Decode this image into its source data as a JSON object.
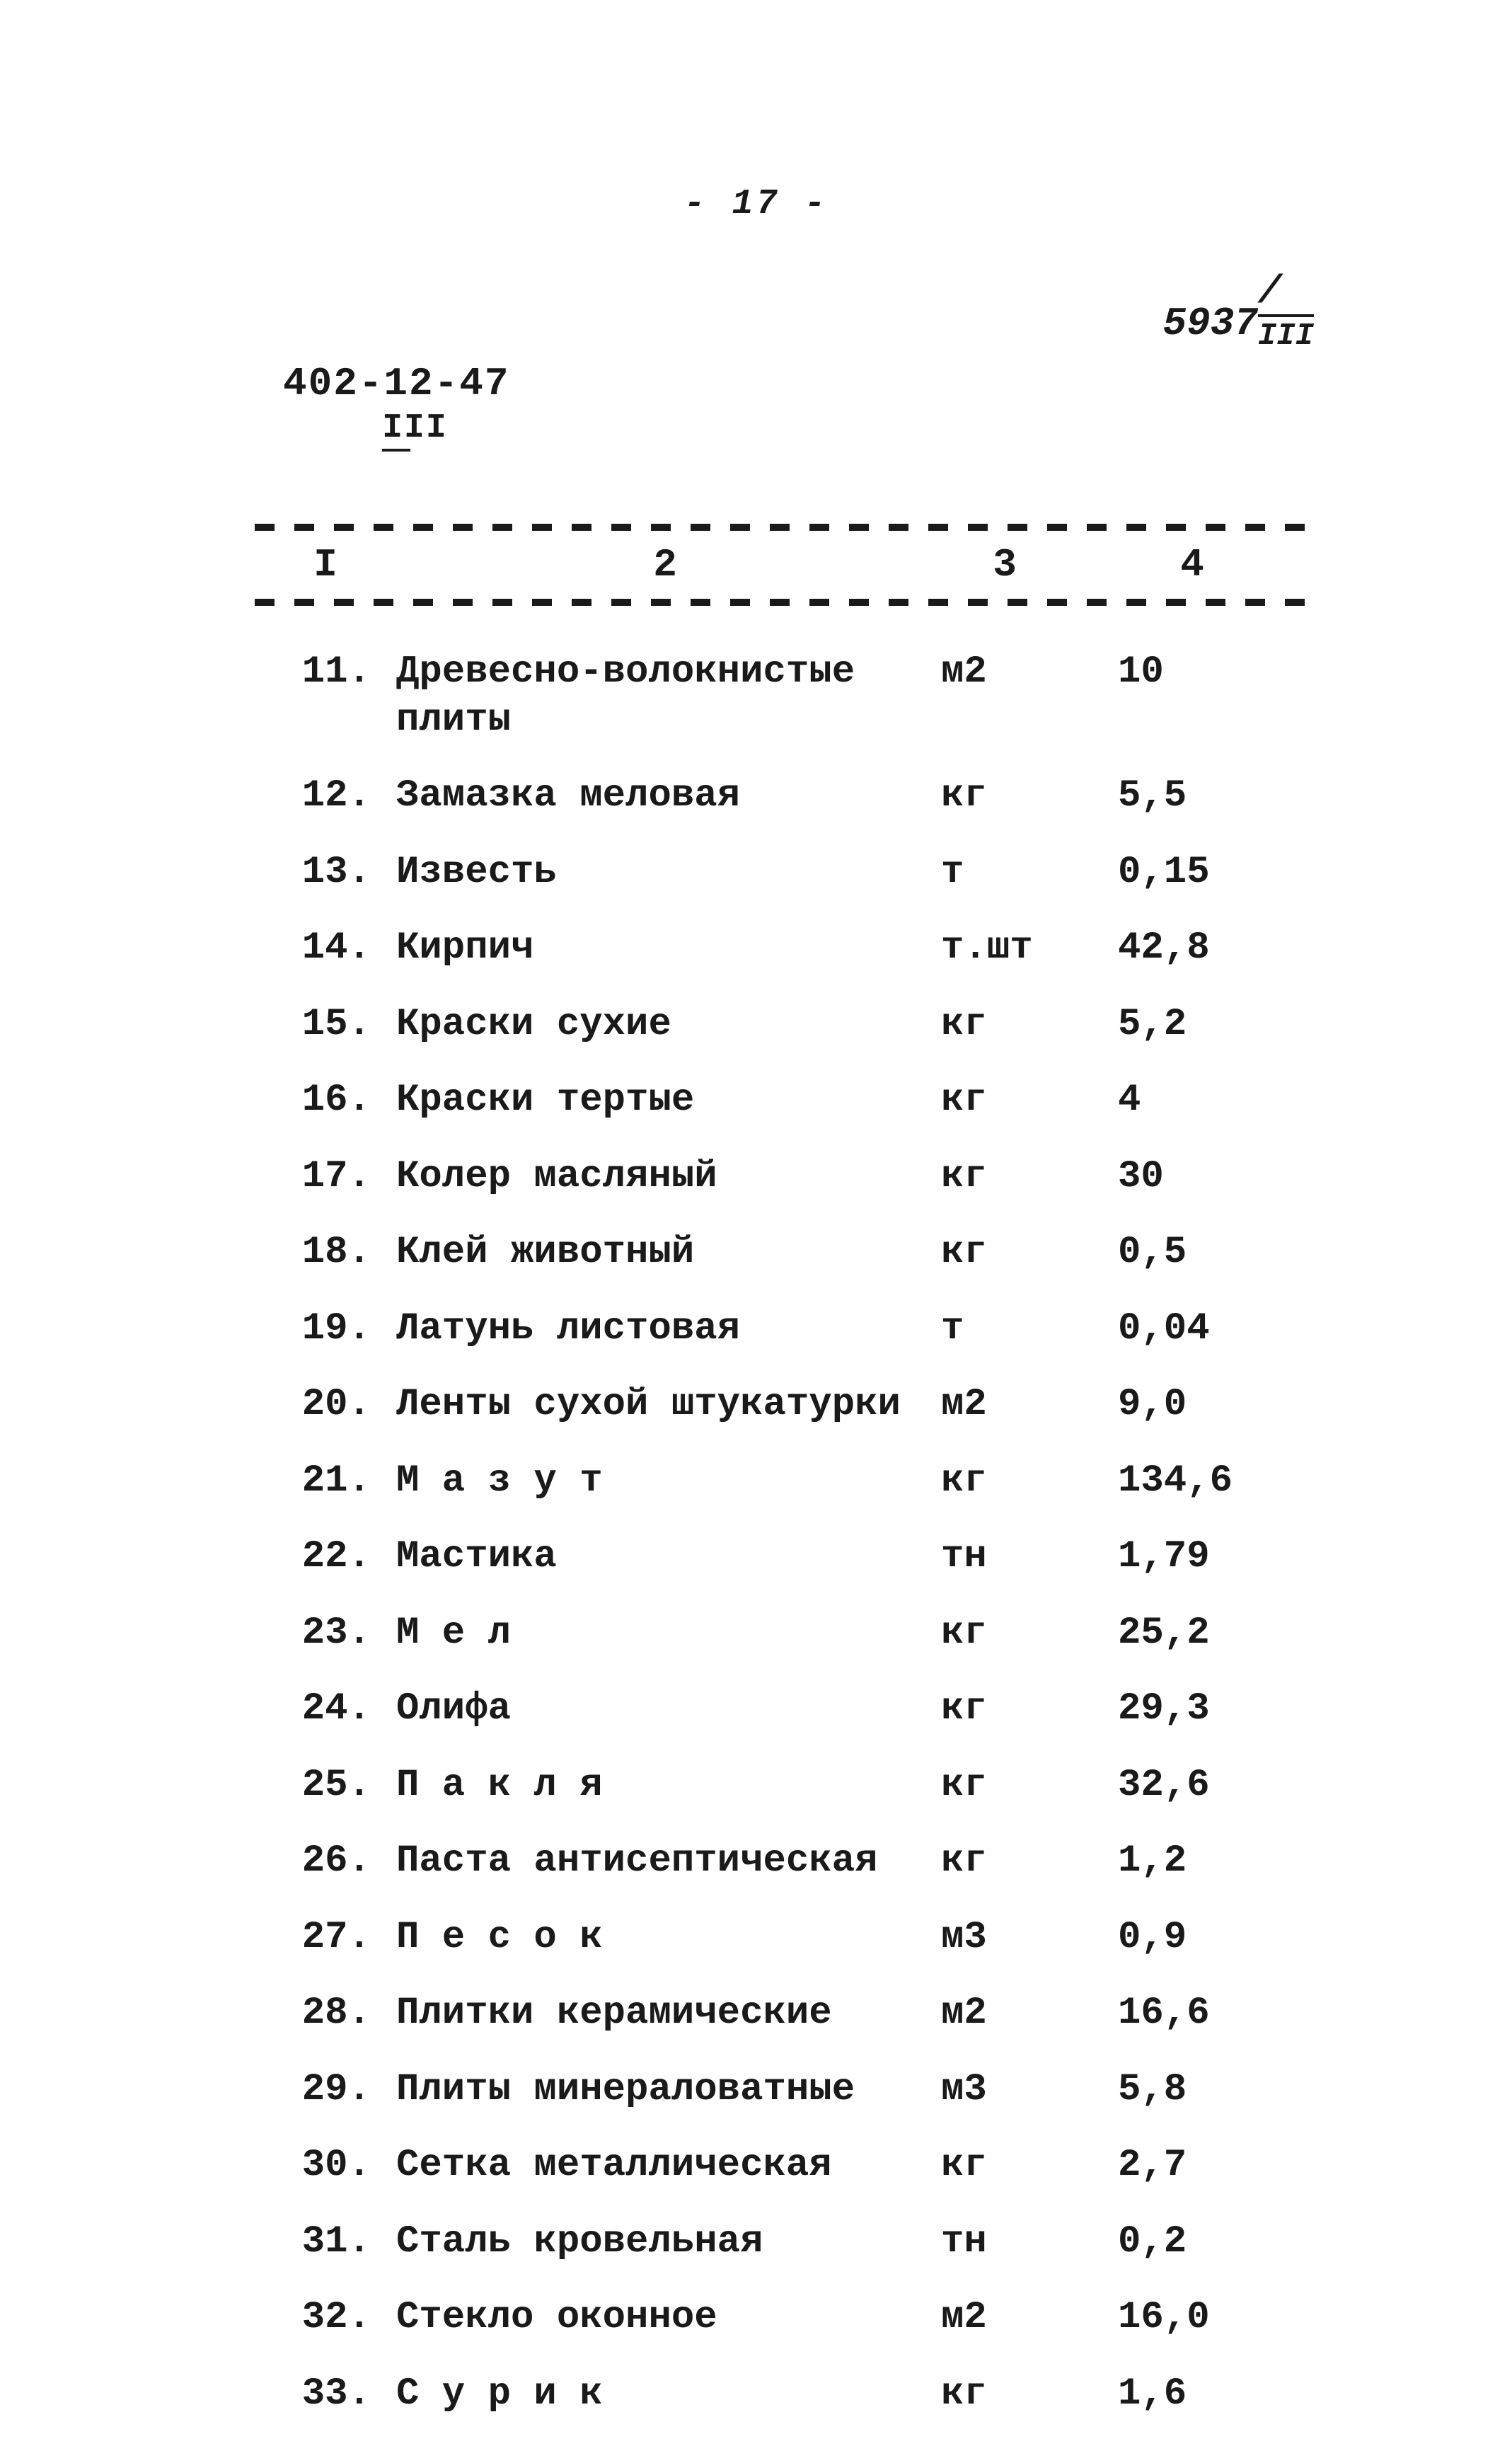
{
  "page_number": "- 17 -",
  "top_right_code": {
    "numerator": "5937",
    "denominator": "III"
  },
  "doc_code": {
    "main": "402-12-47",
    "sub": "III"
  },
  "table": {
    "headers": {
      "c1": "I",
      "c2": "2",
      "c3": "3",
      "c4": "4"
    },
    "rows": [
      {
        "num": "11.",
        "name": "Древесно-волокнистые\nплиты",
        "unit": "м2",
        "val": "10"
      },
      {
        "num": "12.",
        "name": "Замазка меловая",
        "unit": "кг",
        "val": "5,5"
      },
      {
        "num": "13.",
        "name": "Известь",
        "unit": "т",
        "val": "0,15"
      },
      {
        "num": "14.",
        "name": "Кирпич",
        "unit": "т.шт",
        "val": "42,8"
      },
      {
        "num": "15.",
        "name": "Краски сухие",
        "unit": "кг",
        "val": "5,2"
      },
      {
        "num": "16.",
        "name": "Краски тертые",
        "unit": "кг",
        "val": "4"
      },
      {
        "num": "17.",
        "name": "Колер масляный",
        "unit": "кг",
        "val": "30"
      },
      {
        "num": "18.",
        "name": "Клей животный",
        "unit": "кг",
        "val": "0,5"
      },
      {
        "num": "19.",
        "name": "Латунь листовая",
        "unit": "т",
        "val": "0,04"
      },
      {
        "num": "20.",
        "name": "Ленты сухой штукатурки",
        "unit": "м2",
        "val": "9,0"
      },
      {
        "num": "21.",
        "name": "М а з у т",
        "unit": "кг",
        "val": "134,6"
      },
      {
        "num": "22.",
        "name": "Мастика",
        "unit": "тн",
        "val": "1,79"
      },
      {
        "num": "23.",
        "name": "М е л",
        "unit": "кг",
        "val": "25,2"
      },
      {
        "num": "24.",
        "name": "Олифа",
        "unit": "кг",
        "val": "29,3"
      },
      {
        "num": "25.",
        "name": "П а к л я",
        "unit": "кг",
        "val": "32,6"
      },
      {
        "num": "26.",
        "name": "Паста антисептическая",
        "unit": "кг",
        "val": "1,2"
      },
      {
        "num": "27.",
        "name": "П е с о к",
        "unit": "м3",
        "val": "0,9"
      },
      {
        "num": "28.",
        "name": "Плитки керамические",
        "unit": "м2",
        "val": "16,6"
      },
      {
        "num": "29.",
        "name": "Плиты минераловатные",
        "unit": "м3",
        "val": "5,8"
      },
      {
        "num": "30.",
        "name": "Сетка металлическая",
        "unit": "кг",
        "val": "2,7"
      },
      {
        "num": "31.",
        "name": "Сталь кровельная",
        "unit": "тн",
        "val": "0,2"
      },
      {
        "num": "32.",
        "name": "Стекло оконное",
        "unit": "м2",
        "val": "16,0"
      },
      {
        "num": "33.",
        "name": "С у р и к",
        "unit": "кг",
        "val": "1,6"
      }
    ]
  },
  "style": {
    "background_color": "#ffffff",
    "text_color": "#1a1a1a",
    "font_family": "Courier New",
    "page_number_fontsize": 50,
    "header_fontsize": 56,
    "body_fontsize": 54,
    "row_spacing": 40,
    "dash_segment": 28,
    "dash_gap": 28,
    "col_widths": {
      "c1": 200,
      "c2": 740,
      "c3": 240,
      "c4": 260
    }
  }
}
